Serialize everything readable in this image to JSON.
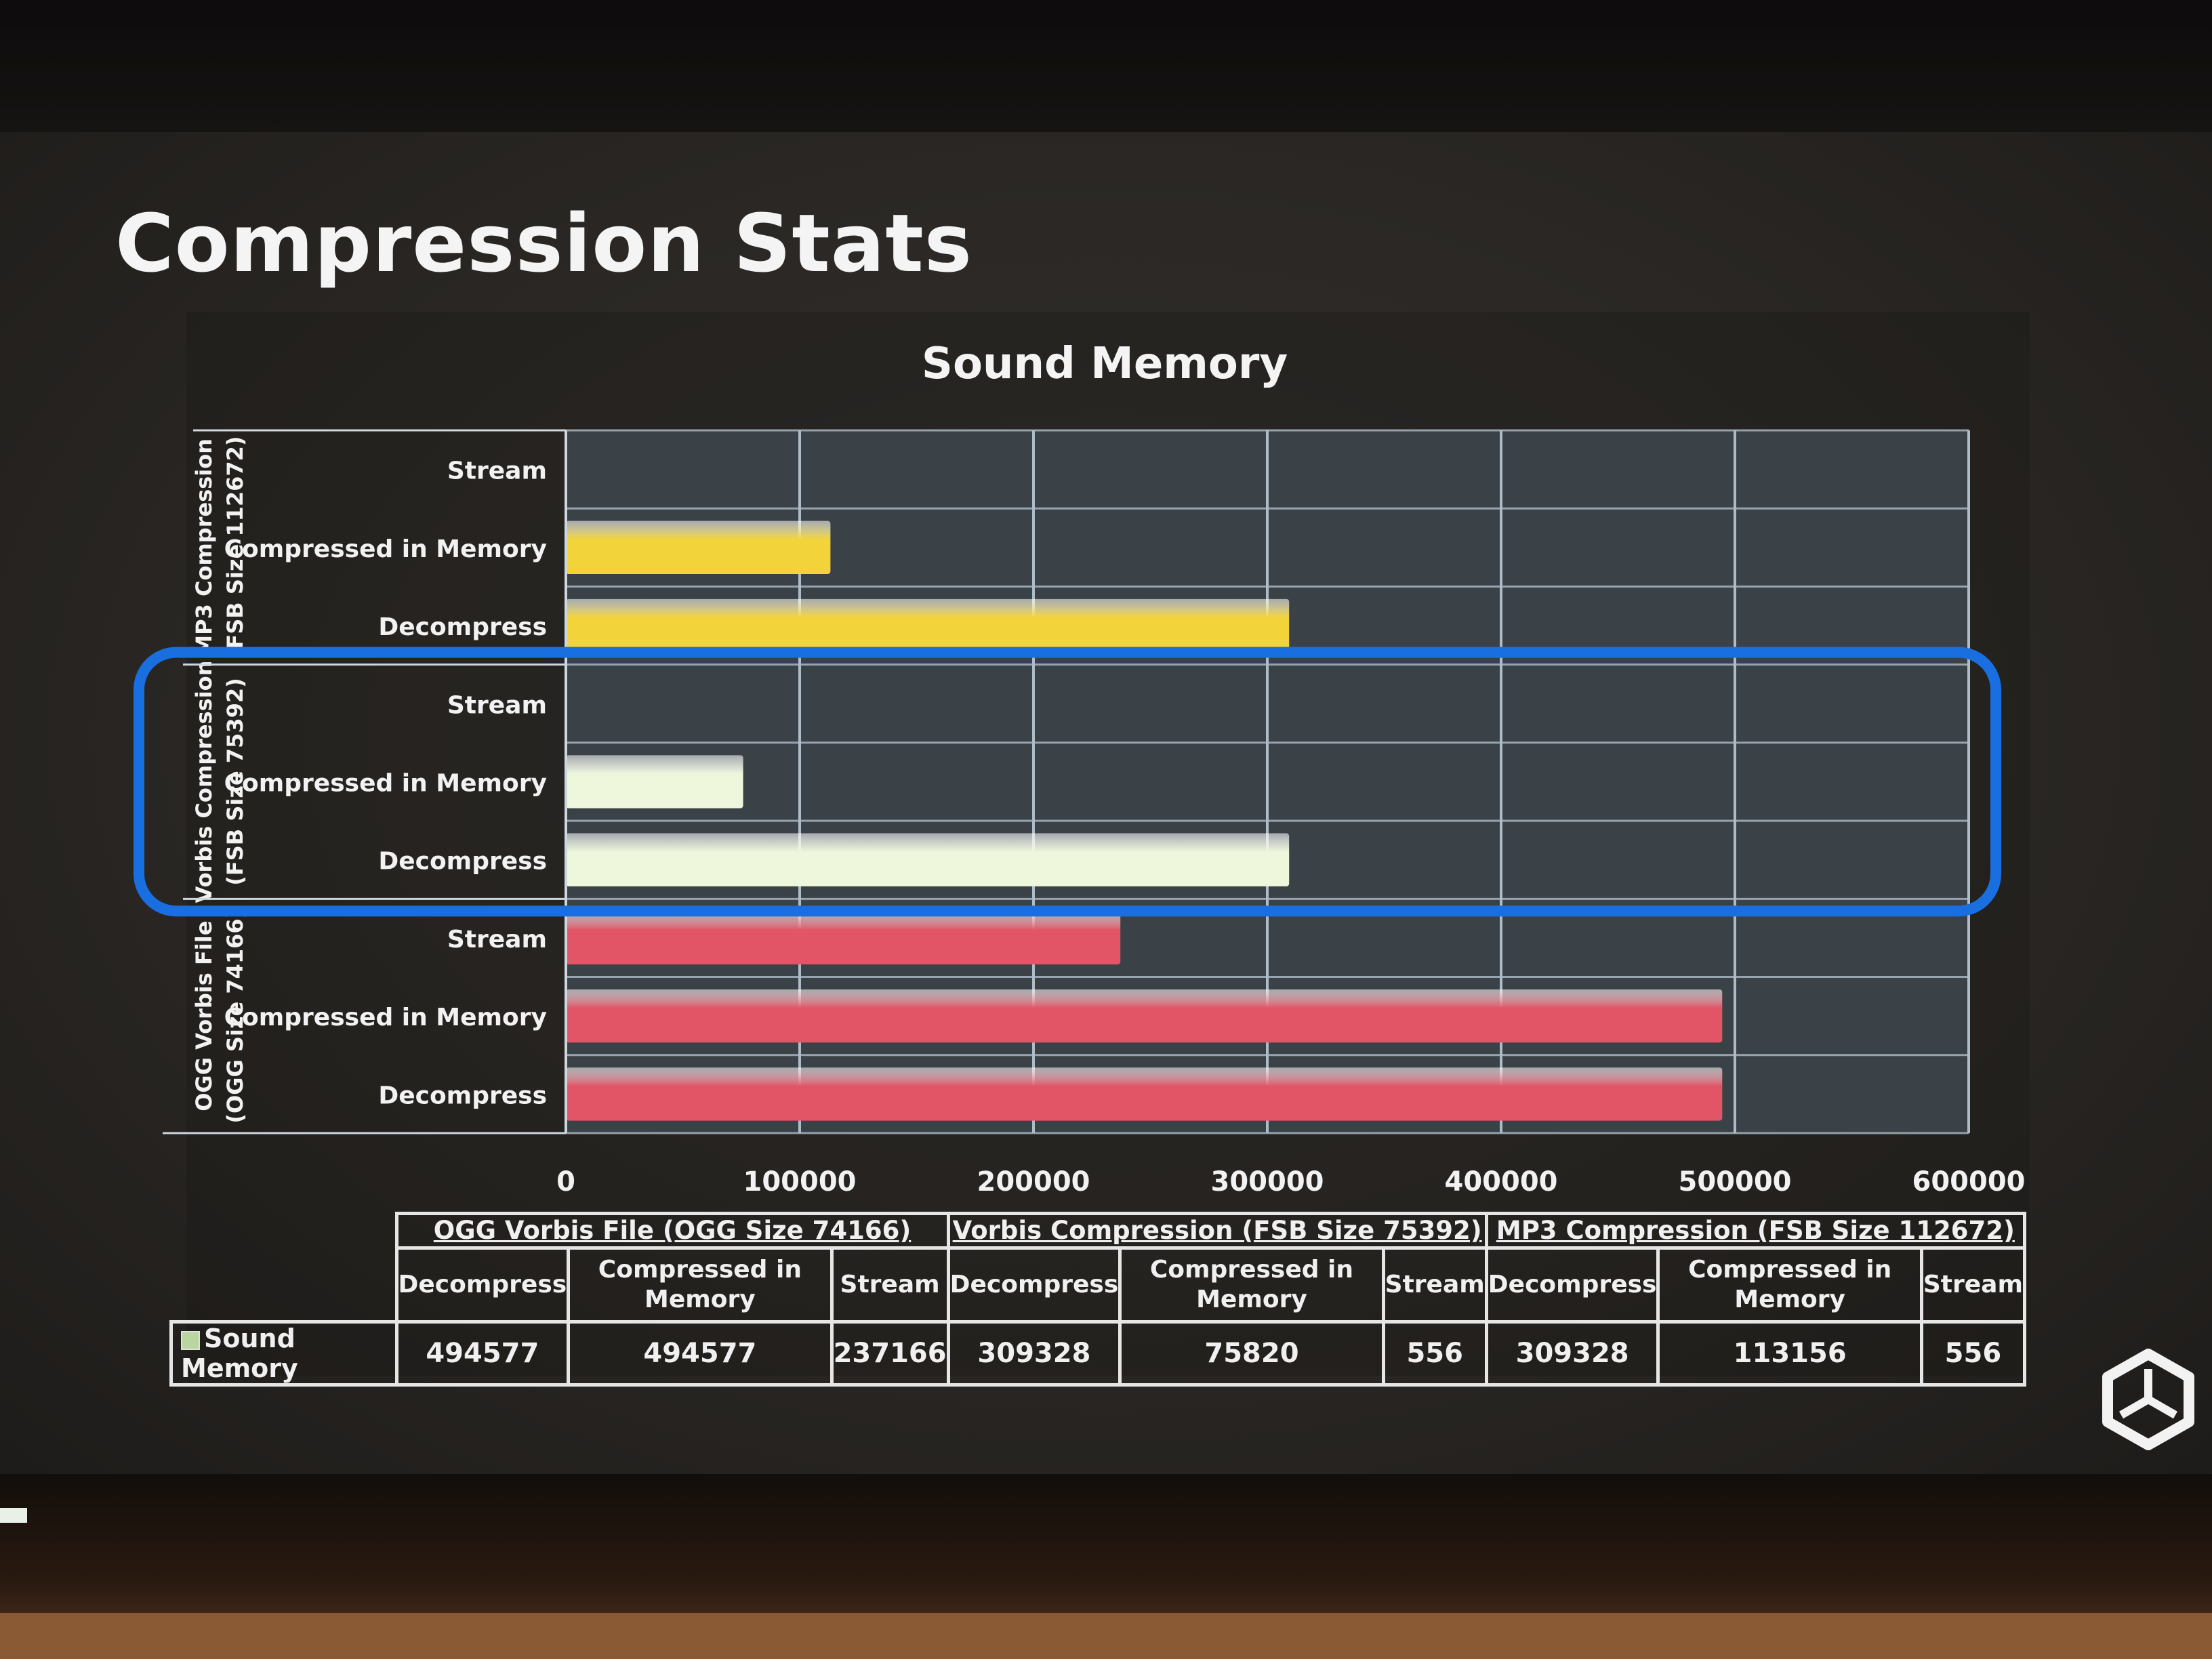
{
  "slide": {
    "title": "Compression Stats"
  },
  "chart_data": {
    "type": "bar",
    "orientation": "horizontal",
    "title": "Sound Memory",
    "series": [
      {
        "name": "Sound Memory",
        "values": [
          494577,
          494577,
          237166,
          309328,
          75820,
          556,
          309328,
          113156,
          556
        ]
      }
    ],
    "groups": [
      {
        "label": "OGG Vorbis File (OGG Size 74166)",
        "axis_label_lines": [
          "OGG Vorbis File",
          "(OGG Size 74166)"
        ],
        "color": "#e25566",
        "bars": [
          {
            "label": "Decompress",
            "value": 494577
          },
          {
            "label": "Compressed in Memory",
            "value": 494577
          },
          {
            "label": "Stream",
            "value": 237166
          }
        ]
      },
      {
        "label": "Vorbis Compression (FSB Size 75392)",
        "axis_label_lines": [
          "Vorbis Compression",
          "(FSB Size 75392)"
        ],
        "color": "#eef6dc",
        "bars": [
          {
            "label": "Decompress",
            "value": 309328
          },
          {
            "label": "Compressed in Memory",
            "value": 75820
          },
          {
            "label": "Stream",
            "value": 556
          }
        ]
      },
      {
        "label": "MP3 Compression (FSB Size 112672)",
        "axis_label_lines": [
          "MP3 Compression",
          "(FSB Size 112672)"
        ],
        "color": "#f2d43a",
        "bars": [
          {
            "label": "Decompress",
            "value": 309328
          },
          {
            "label": "Compressed in Memory",
            "value": 113156
          },
          {
            "label": "Stream",
            "value": 556
          }
        ]
      }
    ],
    "xlim": [
      0,
      600000
    ],
    "x_ticks": [
      0,
      100000,
      200000,
      300000,
      400000,
      500000,
      600000
    ],
    "grid": true,
    "highlighted_group": "Vorbis Compression (FSB Size 75392)",
    "highlight_color": "#1a6fe0",
    "plot_background": "#3b4247",
    "grid_color": "#aebcc8"
  },
  "table": {
    "legend_label": "Sound Memory",
    "groups": [
      {
        "label": "OGG Vorbis File (OGG Size 74166)",
        "cols": [
          "Decompress",
          "Compressed in Memory",
          "Stream"
        ],
        "values": [
          "494577",
          "494577",
          "237166"
        ]
      },
      {
        "label": "Vorbis Compression (FSB Size 75392)",
        "cols": [
          "Decompress",
          "Compressed in Memory",
          "Stream"
        ],
        "values": [
          "309328",
          "75820",
          "556"
        ]
      },
      {
        "label": "MP3 Compression (FSB Size 112672)",
        "cols": [
          "Decompress",
          "Compressed in Memory",
          "Stream"
        ],
        "values": [
          "309328",
          "113156",
          "556"
        ]
      }
    ]
  }
}
